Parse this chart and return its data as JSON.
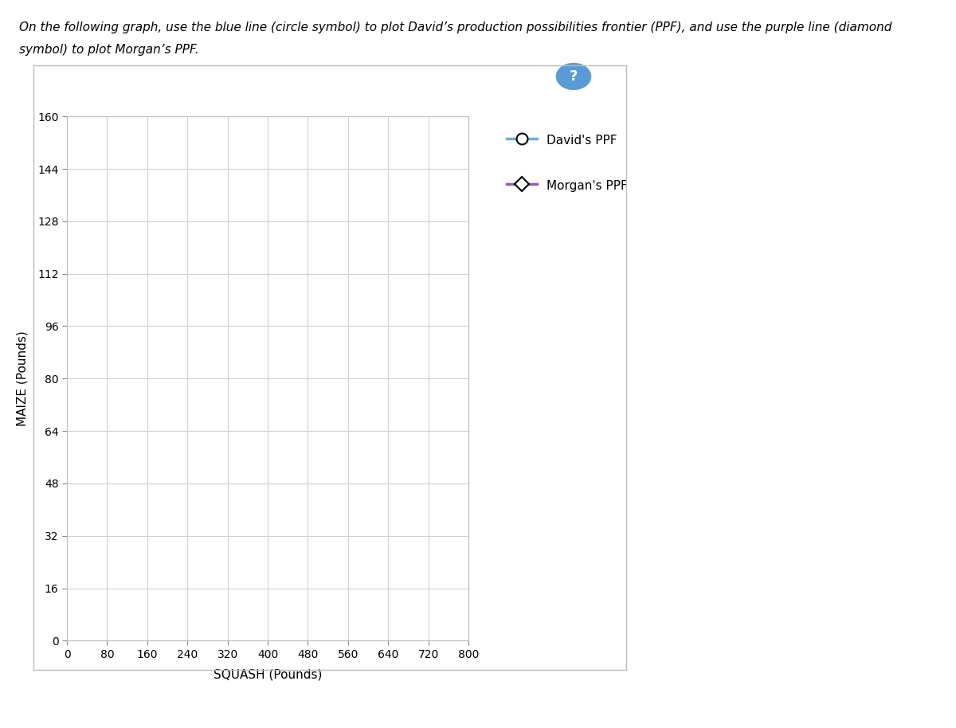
{
  "title_text": "On the following graph, use the blue line (circle symbol) to plot David’s production possibilities frontier (PPF), and use the purple line (diamond\nsymbol) to plot Morgan’s PPF.",
  "xlabel": "SQUASH (Pounds)",
  "ylabel": "MAIZE (Pounds)",
  "xlim": [
    0,
    800
  ],
  "ylim": [
    0,
    160
  ],
  "xticks": [
    0,
    80,
    160,
    240,
    320,
    400,
    480,
    560,
    640,
    720,
    800
  ],
  "yticks": [
    0,
    16,
    32,
    48,
    64,
    80,
    96,
    112,
    128,
    144,
    160
  ],
  "david_color": "#6baed6",
  "morgan_color": "#9b59b6",
  "david_label": "David's PPF",
  "morgan_label": "Morgan's PPF",
  "background_color": "#ffffff",
  "plot_bg_color": "#ffffff",
  "grid_color": "#d0d0d0",
  "border_color": "#c0c0c0",
  "title_fontsize": 11,
  "axis_label_fontsize": 11,
  "tick_fontsize": 10,
  "legend_fontsize": 11,
  "fig_width": 12.0,
  "fig_height": 9.14,
  "dpi": 100
}
